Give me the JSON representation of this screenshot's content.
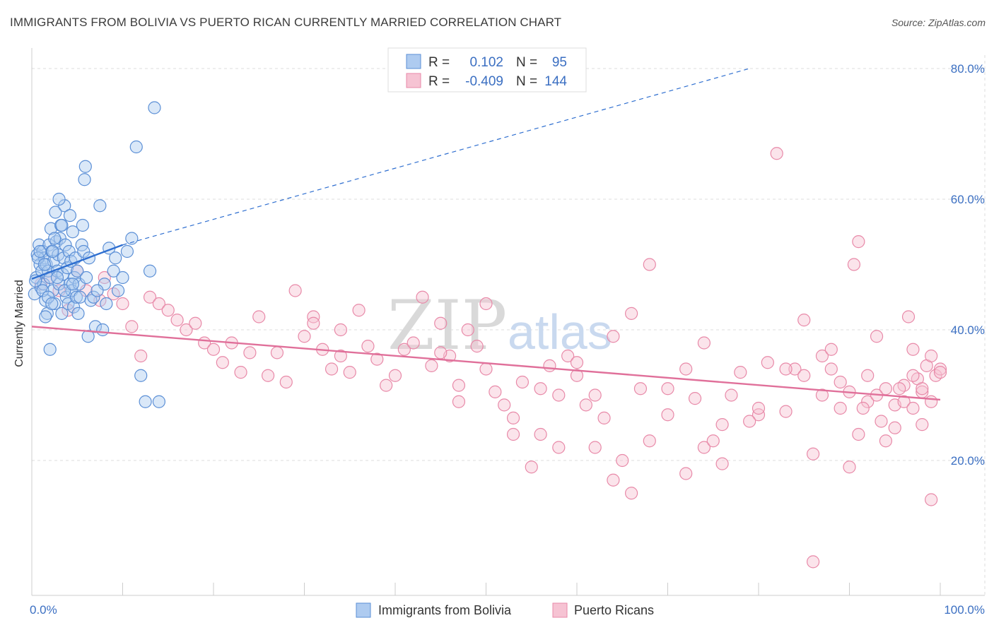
{
  "title": "IMMIGRANTS FROM BOLIVIA VS PUERTO RICAN CURRENTLY MARRIED CORRELATION CHART",
  "source": "Source: ZipAtlas.com",
  "watermark": {
    "zip": "ZIP",
    "atlas": "atlas"
  },
  "colors": {
    "blue": "#5b8fd6",
    "blue_fill": "#aecbf0",
    "blue_line": "#2f6fd0",
    "pink": "#e889a8",
    "pink_fill": "#f6c3d3",
    "pink_line": "#e0709a",
    "grid": "#dddddd",
    "axis_text": "#3b6fc2"
  },
  "legend": {
    "rows": [
      {
        "r_label": "R =",
        "r_value": "0.102",
        "n_label": "N =",
        "n_value": "95",
        "series": "blue"
      },
      {
        "r_label": "R =",
        "r_value": "-0.409",
        "n_label": "N =",
        "n_value": "144",
        "series": "pink"
      }
    ]
  },
  "chart_data": {
    "type": "scatter",
    "title": "IMMIGRANTS FROM BOLIVIA VS PUERTO RICAN CURRENTLY MARRIED CORRELATION CHART",
    "xlabel": "",
    "ylabel": "Currently Married",
    "xlim": [
      0,
      100
    ],
    "ylim": [
      0,
      80
    ],
    "x_tick_labels": [
      "0.0%",
      "100.0%"
    ],
    "y_ticks": [
      20,
      40,
      60,
      80
    ],
    "y_tick_labels": [
      "20.0%",
      "40.0%",
      "60.0%",
      "80.0%"
    ],
    "grid": true,
    "legend_position": "top-center",
    "series": [
      {
        "name": "Immigrants from Bolivia",
        "color": "blue",
        "trend": {
          "x": [
            0,
            10
          ],
          "y": [
            47.8,
            53
          ],
          "dashed_extension_to": [
            79,
            80
          ]
        },
        "points": [
          [
            0.3,
            45.5
          ],
          [
            0.5,
            48
          ],
          [
            0.6,
            51.5
          ],
          [
            0.8,
            53
          ],
          [
            0.9,
            50
          ],
          [
            1.0,
            46.5
          ],
          [
            1.1,
            49
          ],
          [
            1.2,
            52
          ],
          [
            1.3,
            47
          ],
          [
            1.4,
            51
          ],
          [
            1.5,
            44.5
          ],
          [
            1.6,
            50
          ],
          [
            1.7,
            42.5
          ],
          [
            1.8,
            49
          ],
          [
            1.9,
            53
          ],
          [
            2.0,
            48
          ],
          [
            2.1,
            55.5
          ],
          [
            2.2,
            52
          ],
          [
            2.3,
            46
          ],
          [
            2.4,
            50.5
          ],
          [
            2.5,
            44
          ],
          [
            2.6,
            58
          ],
          [
            2.7,
            53.5
          ],
          [
            2.8,
            49
          ],
          [
            2.9,
            51.5
          ],
          [
            3.0,
            47
          ],
          [
            3.1,
            54
          ],
          [
            3.2,
            56
          ],
          [
            3.3,
            42.5
          ],
          [
            3.4,
            48.5
          ],
          [
            3.5,
            51
          ],
          [
            3.6,
            59
          ],
          [
            3.7,
            53
          ],
          [
            3.8,
            45
          ],
          [
            3.9,
            49.5
          ],
          [
            4.0,
            44
          ],
          [
            4.1,
            52
          ],
          [
            4.2,
            47
          ],
          [
            4.3,
            50.5
          ],
          [
            4.4,
            46
          ],
          [
            4.5,
            55
          ],
          [
            4.6,
            43.5
          ],
          [
            4.7,
            48
          ],
          [
            4.8,
            51
          ],
          [
            4.9,
            45
          ],
          [
            5.0,
            49
          ],
          [
            5.1,
            42.5
          ],
          [
            5.2,
            47
          ],
          [
            5.5,
            53
          ],
          [
            5.6,
            56
          ],
          [
            5.7,
            52
          ],
          [
            5.8,
            63
          ],
          [
            5.9,
            65
          ],
          [
            6.0,
            48
          ],
          [
            6.2,
            39
          ],
          [
            6.5,
            44.5
          ],
          [
            6.8,
            45
          ],
          [
            7.0,
            40.5
          ],
          [
            7.5,
            59
          ],
          [
            7.8,
            40
          ],
          [
            8.0,
            47
          ],
          [
            8.5,
            52.5
          ],
          [
            9.0,
            49
          ],
          [
            9.5,
            46
          ],
          [
            10.0,
            48
          ],
          [
            10.5,
            52
          ],
          [
            11.0,
            54
          ],
          [
            11.5,
            68
          ],
          [
            12.0,
            33
          ],
          [
            12.5,
            29
          ],
          [
            13.0,
            49
          ],
          [
            13.5,
            74
          ],
          [
            14.0,
            29
          ],
          [
            2.0,
            37
          ],
          [
            1.5,
            42
          ],
          [
            0.7,
            51
          ],
          [
            0.4,
            47.5
          ],
          [
            1.2,
            46
          ],
          [
            2.3,
            52
          ],
          [
            3.3,
            56
          ],
          [
            4.2,
            57.5
          ],
          [
            2.8,
            48
          ],
          [
            3.6,
            46
          ],
          [
            1.8,
            45
          ],
          [
            2.5,
            54
          ],
          [
            0.9,
            52
          ],
          [
            1.4,
            50
          ],
          [
            2.2,
            44
          ],
          [
            3.0,
            60
          ],
          [
            4.5,
            47
          ],
          [
            5.3,
            45
          ],
          [
            6.3,
            51
          ],
          [
            7.2,
            46
          ],
          [
            8.2,
            44
          ],
          [
            9.2,
            51
          ]
        ]
      },
      {
        "name": "Puerto Ricans",
        "color": "pink",
        "trend": {
          "x": [
            0,
            100
          ],
          "y": [
            40.5,
            29.3
          ]
        },
        "points": [
          [
            1.0,
            47
          ],
          [
            2.0,
            48
          ],
          [
            3.0,
            46
          ],
          [
            4.0,
            43
          ],
          [
            5.0,
            49
          ],
          [
            6.0,
            46
          ],
          [
            7.5,
            44.5
          ],
          [
            8.0,
            48
          ],
          [
            9.0,
            45.5
          ],
          [
            10.0,
            44
          ],
          [
            11.0,
            40.5
          ],
          [
            12.0,
            36
          ],
          [
            13.0,
            45
          ],
          [
            14.0,
            44
          ],
          [
            15.0,
            43
          ],
          [
            16.0,
            41.5
          ],
          [
            17.0,
            40
          ],
          [
            18.0,
            41
          ],
          [
            19.0,
            38
          ],
          [
            20.0,
            37
          ],
          [
            21.0,
            35
          ],
          [
            22.0,
            38
          ],
          [
            23.0,
            33.5
          ],
          [
            24.0,
            36.5
          ],
          [
            25.0,
            42
          ],
          [
            26.0,
            33
          ],
          [
            27.0,
            36.5
          ],
          [
            28.0,
            32
          ],
          [
            29.0,
            46
          ],
          [
            30.0,
            39
          ],
          [
            31.0,
            42
          ],
          [
            32.0,
            37
          ],
          [
            33.0,
            34
          ],
          [
            34.0,
            36
          ],
          [
            35.0,
            33.5
          ],
          [
            36.0,
            43
          ],
          [
            37.0,
            37.5
          ],
          [
            38.0,
            35.5
          ],
          [
            39.0,
            31.5
          ],
          [
            40.0,
            33
          ],
          [
            41.0,
            37
          ],
          [
            42.0,
            38
          ],
          [
            43.0,
            45
          ],
          [
            44.0,
            34.5
          ],
          [
            45.0,
            41
          ],
          [
            46.0,
            36
          ],
          [
            47.0,
            31.5
          ],
          [
            48.0,
            40
          ],
          [
            49.0,
            37.5
          ],
          [
            50.0,
            34
          ],
          [
            51.0,
            30.5
          ],
          [
            52.0,
            28.5
          ],
          [
            53.0,
            24
          ],
          [
            54.0,
            32
          ],
          [
            55.0,
            19
          ],
          [
            56.0,
            31
          ],
          [
            57.0,
            34.5
          ],
          [
            58.0,
            30
          ],
          [
            59.0,
            36
          ],
          [
            60.0,
            35
          ],
          [
            61.0,
            28.5
          ],
          [
            62.0,
            22
          ],
          [
            63.0,
            26.5
          ],
          [
            64.0,
            17
          ],
          [
            65.0,
            20
          ],
          [
            66.0,
            15
          ],
          [
            67.0,
            31
          ],
          [
            68.0,
            50
          ],
          [
            70.0,
            31
          ],
          [
            72.0,
            34
          ],
          [
            74.0,
            38
          ],
          [
            76.0,
            25.5
          ],
          [
            78.0,
            33.5
          ],
          [
            80.0,
            27
          ],
          [
            82.0,
            67
          ],
          [
            83.0,
            27.5
          ],
          [
            86.0,
            21
          ],
          [
            88.0,
            34
          ],
          [
            90.0,
            30.5
          ],
          [
            91.0,
            24
          ],
          [
            92.0,
            29
          ],
          [
            94.0,
            23
          ],
          [
            96.0,
            31.5
          ],
          [
            98.0,
            30.5
          ],
          [
            99.0,
            29
          ],
          [
            72.0,
            18
          ],
          [
            74.0,
            22
          ],
          [
            76.0,
            19.5
          ],
          [
            80.0,
            28
          ],
          [
            85.0,
            41.5
          ],
          [
            87.0,
            36
          ],
          [
            89.0,
            32
          ],
          [
            90.5,
            50
          ],
          [
            91.0,
            53.5
          ],
          [
            92.0,
            33
          ],
          [
            93.0,
            39
          ],
          [
            95.0,
            28.5
          ],
          [
            96.5,
            42
          ],
          [
            97.0,
            37
          ],
          [
            98.0,
            25.5
          ],
          [
            98.5,
            34.5
          ],
          [
            99.0,
            14
          ],
          [
            99.5,
            33
          ],
          [
            100.0,
            34
          ],
          [
            88.0,
            37
          ],
          [
            84.0,
            34
          ],
          [
            93.5,
            26
          ],
          [
            95.0,
            25
          ],
          [
            96.0,
            29
          ],
          [
            97.5,
            32.5
          ],
          [
            86.0,
            4.5
          ],
          [
            90.0,
            19
          ],
          [
            94.0,
            31
          ],
          [
            97.0,
            28
          ],
          [
            99.0,
            36
          ],
          [
            45.0,
            36.5
          ],
          [
            47.0,
            29
          ],
          [
            50.0,
            44
          ],
          [
            53.0,
            26.5
          ],
          [
            56.0,
            24
          ],
          [
            58.0,
            22
          ],
          [
            60.0,
            33
          ],
          [
            62.0,
            30
          ],
          [
            64.0,
            39
          ],
          [
            66.0,
            42.5
          ],
          [
            68.0,
            23
          ],
          [
            70.0,
            27
          ],
          [
            73.0,
            29.5
          ],
          [
            75.0,
            23
          ],
          [
            77.0,
            30
          ],
          [
            79.0,
            26
          ],
          [
            81.0,
            35
          ],
          [
            83.0,
            34
          ],
          [
            85.0,
            33
          ],
          [
            87.0,
            30
          ],
          [
            89.0,
            28
          ],
          [
            91.5,
            28
          ],
          [
            93.0,
            30
          ],
          [
            95.5,
            31
          ],
          [
            97.0,
            33
          ],
          [
            98.0,
            31
          ],
          [
            100.0,
            33.5
          ],
          [
            34.0,
            40
          ],
          [
            31.0,
            41
          ]
        ]
      }
    ]
  },
  "bottom_legend": [
    {
      "label": "Immigrants from Bolivia",
      "series": "blue"
    },
    {
      "label": "Puerto Ricans",
      "series": "pink"
    }
  ]
}
